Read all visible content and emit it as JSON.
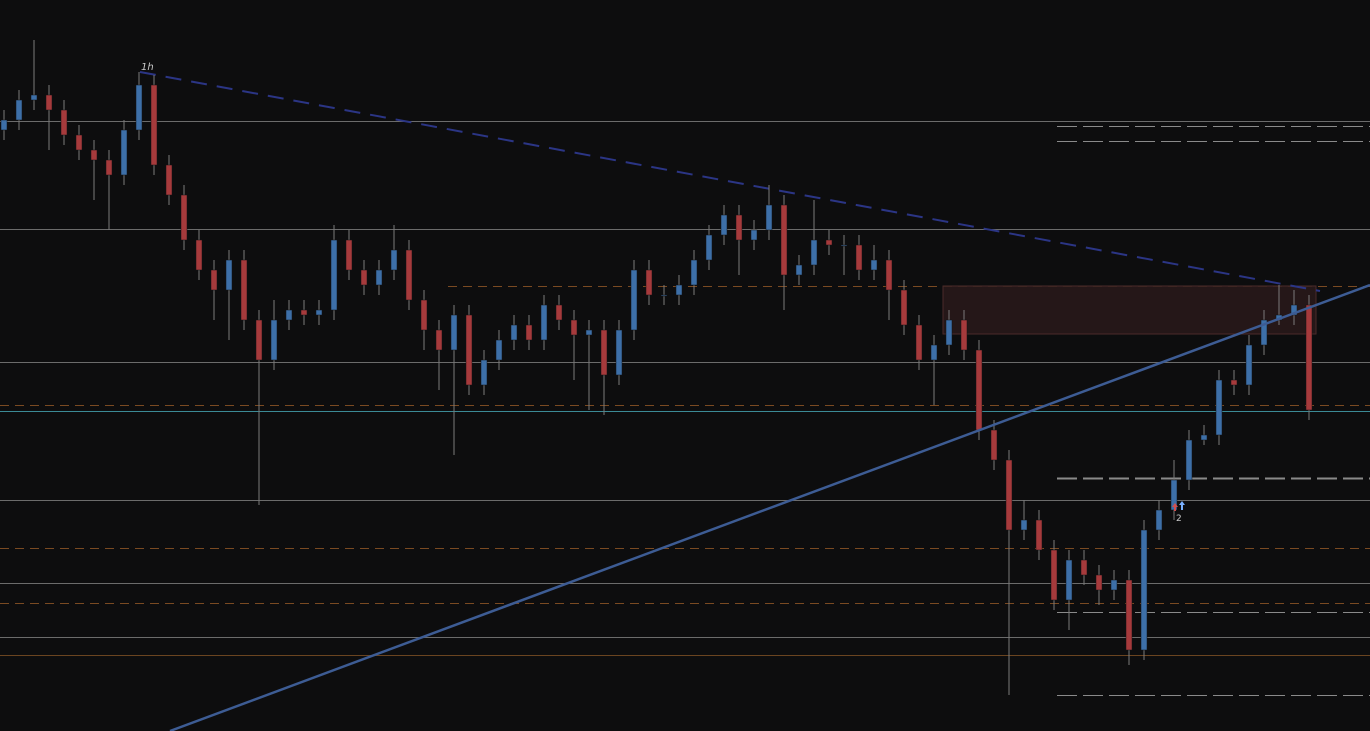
{
  "chart_data": {
    "type": "candlestick",
    "timeframe_label": "1h",
    "marker_label": "2",
    "up_color": "#3d6fa8",
    "down_color": "#a63a3c",
    "ylim": [
      0,
      731
    ],
    "open": [
      601,
      611,
      631,
      636,
      621,
      596,
      581,
      571,
      556,
      601,
      646,
      566,
      536,
      491,
      461,
      441,
      471,
      411,
      371,
      411,
      421,
      416,
      421,
      491,
      461,
      446,
      461,
      481,
      431,
      401,
      381,
      416,
      346,
      371,
      391,
      406,
      391,
      426,
      411,
      396,
      401,
      356,
      401,
      461,
      436,
      436,
      446,
      471,
      496,
      516,
      491,
      501,
      526,
      456,
      466,
      491,
      486,
      486,
      461,
      471,
      441,
      406,
      371,
      386,
      411,
      381,
      301,
      271,
      201,
      211,
      181,
      131,
      171,
      156,
      141,
      151,
      81,
      201,
      221,
      251,
      291,
      296,
      351,
      346,
      386,
      411,
      416,
      426
    ],
    "high": [
      621,
      641,
      691,
      646,
      631,
      606,
      591,
      581,
      611,
      659,
      656,
      576,
      546,
      501,
      471,
      481,
      481,
      421,
      431,
      431,
      431,
      431,
      506,
      501,
      471,
      471,
      506,
      491,
      441,
      411,
      426,
      426,
      381,
      401,
      416,
      416,
      436,
      436,
      421,
      411,
      411,
      411,
      471,
      471,
      446,
      456,
      481,
      506,
      526,
      526,
      511,
      546,
      536,
      476,
      531,
      501,
      496,
      496,
      486,
      481,
      451,
      416,
      396,
      421,
      421,
      391,
      311,
      281,
      231,
      221,
      191,
      181,
      181,
      166,
      161,
      161,
      211,
      231,
      271,
      301,
      306,
      361,
      361,
      396,
      421,
      446,
      441,
      436
    ],
    "low": [
      591,
      601,
      621,
      581,
      586,
      571,
      531,
      501,
      546,
      591,
      556,
      526,
      481,
      451,
      411,
      391,
      401,
      226,
      361,
      401,
      406,
      406,
      411,
      451,
      436,
      436,
      451,
      421,
      381,
      341,
      276,
      336,
      336,
      361,
      381,
      381,
      381,
      401,
      351,
      321,
      316,
      346,
      391,
      426,
      426,
      426,
      436,
      461,
      486,
      456,
      481,
      491,
      421,
      446,
      456,
      476,
      456,
      451,
      451,
      411,
      396,
      361,
      326,
      376,
      371,
      291,
      261,
      36,
      191,
      171,
      121,
      101,
      146,
      126,
      131,
      66,
      71,
      191,
      211,
      241,
      286,
      286,
      336,
      336,
      376,
      406,
      406,
      311
    ],
    "close": [
      611,
      631,
      636,
      621,
      596,
      581,
      571,
      556,
      601,
      646,
      566,
      536,
      491,
      461,
      441,
      471,
      411,
      371,
      411,
      421,
      416,
      421,
      491,
      461,
      446,
      461,
      481,
      431,
      401,
      381,
      416,
      346,
      371,
      391,
      406,
      391,
      426,
      411,
      396,
      401,
      356,
      401,
      461,
      436,
      436,
      446,
      471,
      496,
      516,
      491,
      501,
      526,
      456,
      466,
      491,
      486,
      486,
      461,
      471,
      441,
      406,
      371,
      386,
      411,
      381,
      301,
      271,
      201,
      211,
      181,
      131,
      171,
      156,
      141,
      151,
      81,
      201,
      221,
      251,
      291,
      296,
      351,
      346,
      386,
      411,
      416,
      426,
      321
    ]
  }
}
